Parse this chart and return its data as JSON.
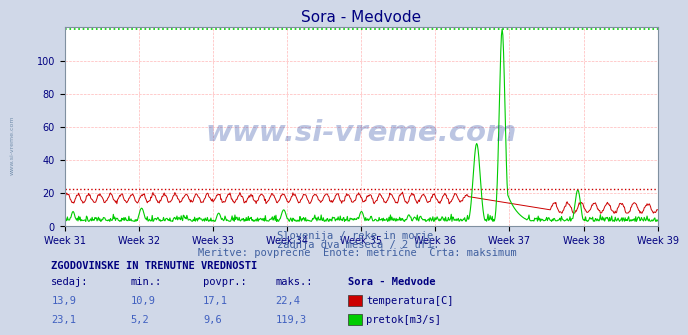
{
  "title": "Sora - Medvode",
  "title_color": "#000080",
  "bg_color": "#d0d8e8",
  "plot_bg_color": "#ffffff",
  "grid_color": "#ffb0b0",
  "xlabel_weeks": [
    "Week 31",
    "Week 32",
    "Week 33",
    "Week 34",
    "Week 35",
    "Week 36",
    "Week 37",
    "Week 38",
    "Week 39"
  ],
  "ylim": [
    0,
    120
  ],
  "temp_color": "#cc0000",
  "flow_color": "#00cc00",
  "temp_max": 22.4,
  "flow_max": 119.3,
  "subtitle1": "Slovenija / reke in morje.",
  "subtitle2": "zadnja dva meseca / 2 uri.",
  "subtitle3": "Meritve: povprečne  Enote: metrične  Črta: maksimum",
  "table_title": "ZGODOVINSKE IN TRENUTNE VREDNOSTI",
  "col_headers": [
    "sedaj:",
    "min.:",
    "povpr.:",
    "maks.:",
    "Sora - Medvode"
  ],
  "row1": [
    "13,9",
    "10,9",
    "17,1",
    "22,4"
  ],
  "row2": [
    "23,1",
    "5,2",
    "9,6",
    "119,3"
  ],
  "label1": "temperatura[C]",
  "label2": "pretok[m3/s]",
  "watermark": "www.si-vreme.com",
  "watermark_color": "#2040a0",
  "axis_label_color": "#000080",
  "subtitle_color": "#4060a0",
  "num_points": 840
}
